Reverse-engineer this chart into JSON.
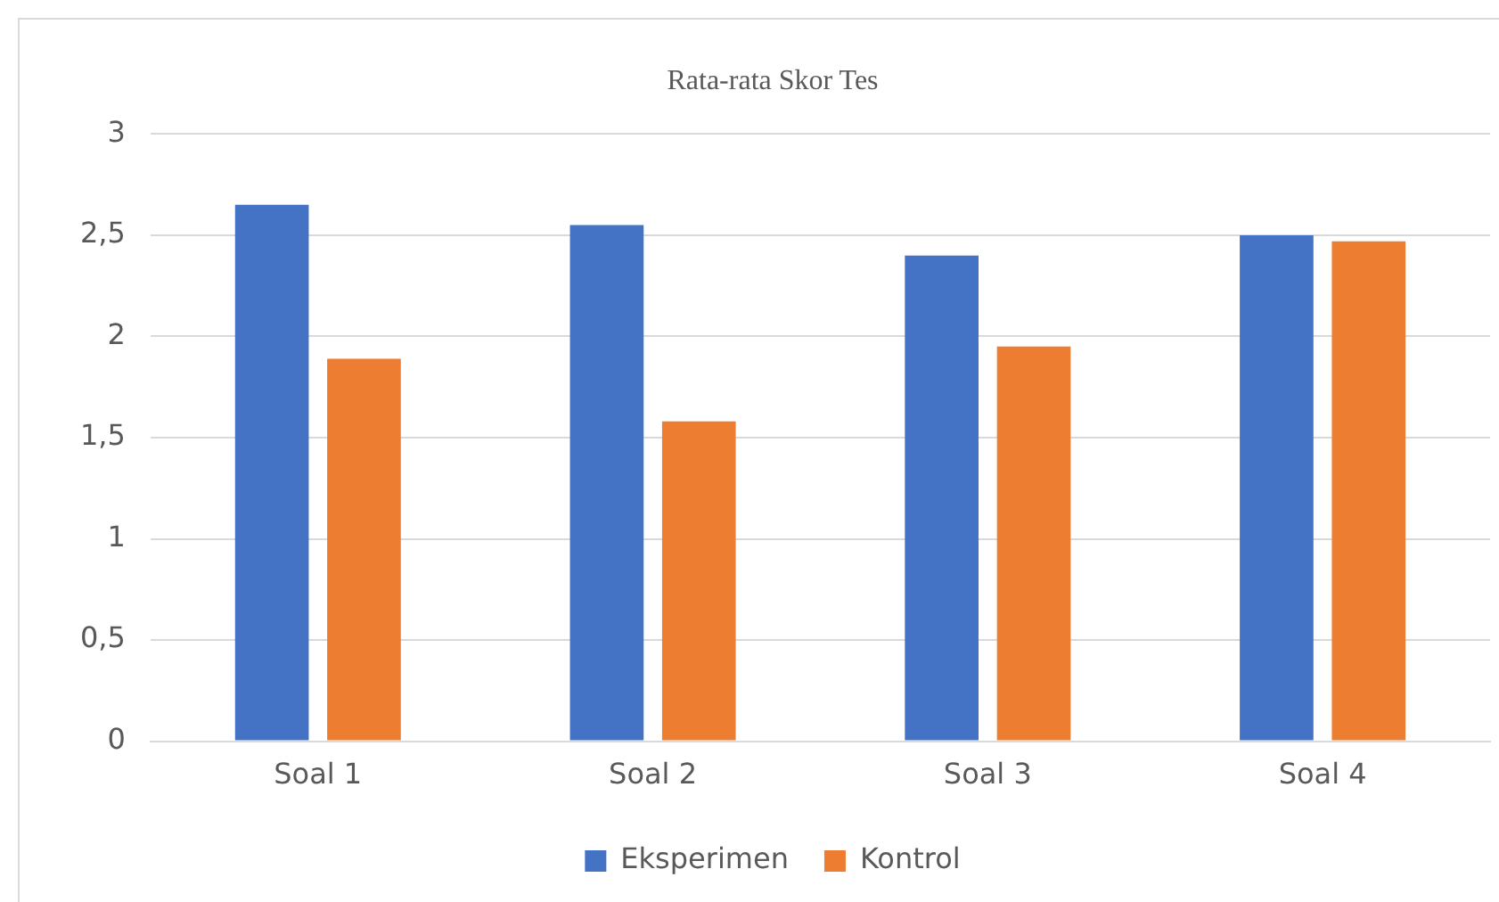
{
  "chart_data": {
    "type": "bar",
    "title": "Rata-rata Skor Tes",
    "categories": [
      "Soal 1",
      "Soal 2",
      "Soal 3",
      "Soal 4"
    ],
    "series": [
      {
        "name": "Eksperimen",
        "color": "#4472c4",
        "values": [
          2.65,
          2.55,
          2.4,
          2.5
        ]
      },
      {
        "name": "Kontrol",
        "color": "#ed7d31",
        "values": [
          1.89,
          1.58,
          1.95,
          2.47
        ]
      }
    ],
    "ylim": [
      0,
      3
    ],
    "yticks": [
      0,
      {
        "value": 0.5,
        "label": "0,5"
      },
      1,
      {
        "value": 1.5,
        "label": "1,5"
      },
      2,
      {
        "value": 2.5,
        "label": "2,5"
      },
      3
    ],
    "grid": "y",
    "legend": "bottom"
  }
}
